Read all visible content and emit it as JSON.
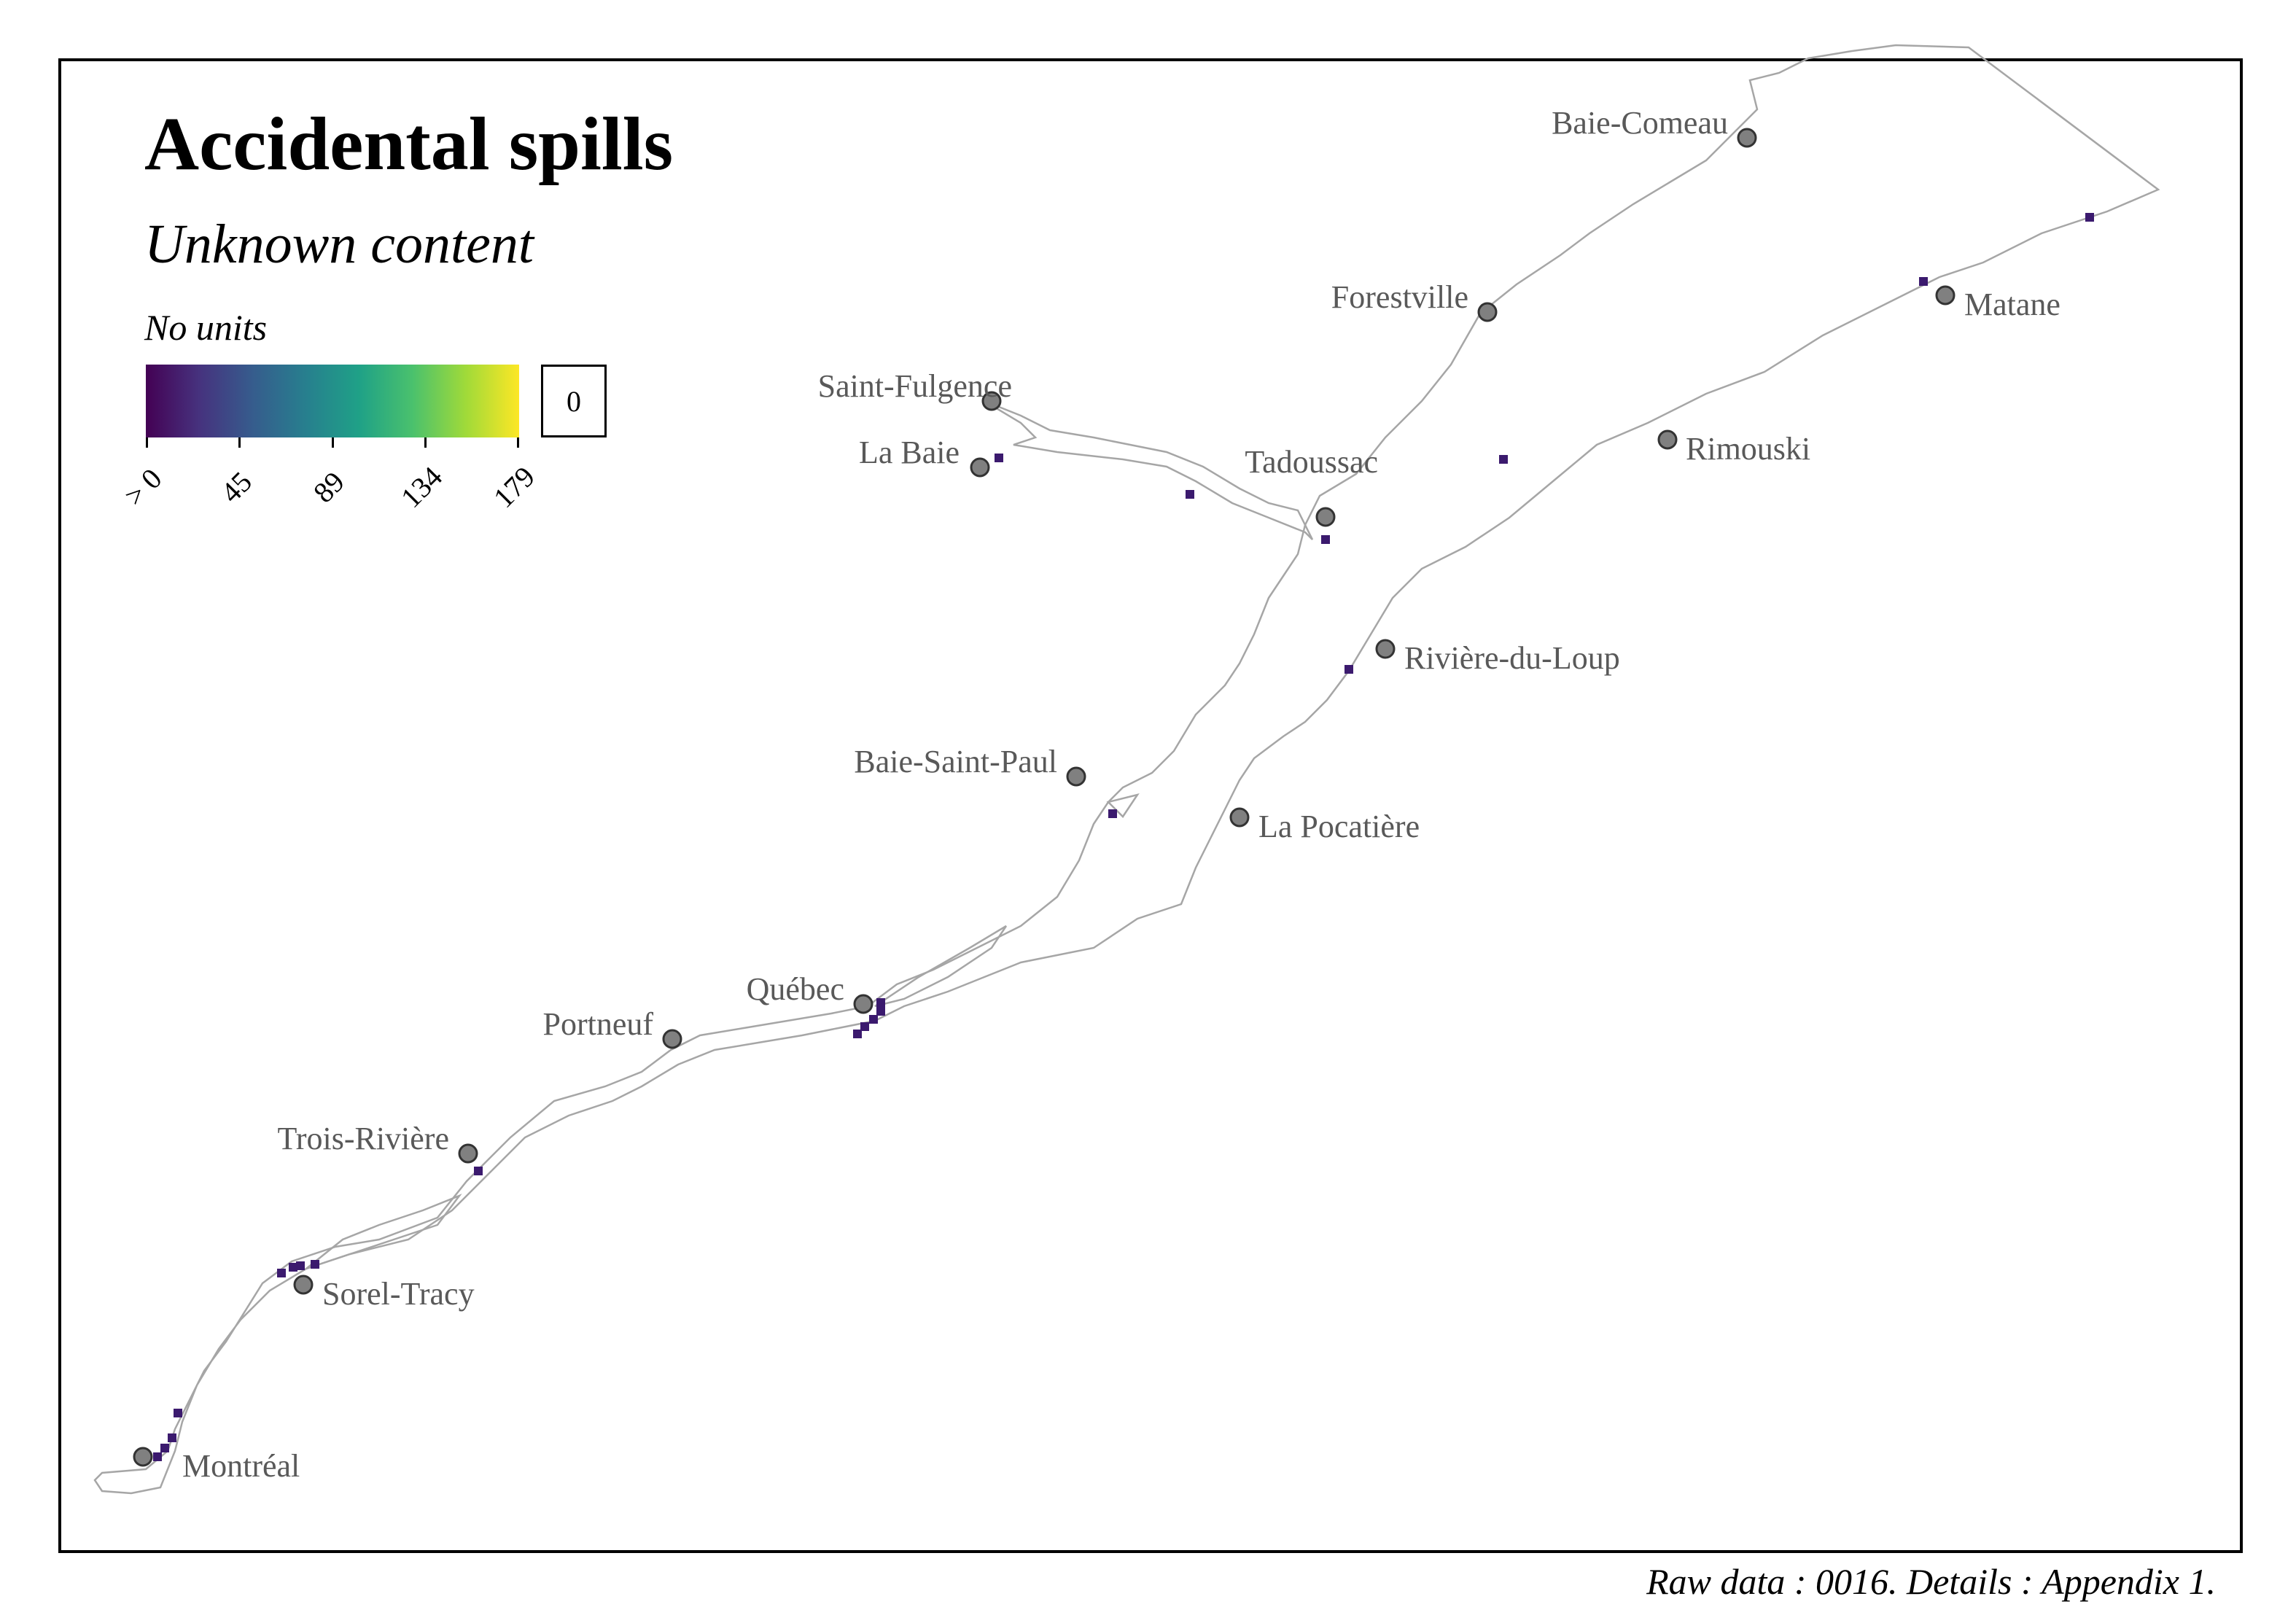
{
  "title": "Accidental spills",
  "subtitle": "Unknown content",
  "legend": {
    "units_label": "No units",
    "zero_label": "0",
    "ticks": [
      "> 0",
      "45",
      "89",
      "134",
      "179"
    ],
    "colors": [
      "#440154",
      "#46327e",
      "#365c8d",
      "#277f8e",
      "#1fa187",
      "#4ac16d",
      "#a0da39",
      "#fde725"
    ]
  },
  "cities": [
    {
      "name": "Baie-Comeau"
    },
    {
      "name": "Forestville"
    },
    {
      "name": "Matane"
    },
    {
      "name": "Saint-Fulgence"
    },
    {
      "name": "La Baie"
    },
    {
      "name": "Tadoussac"
    },
    {
      "name": "Rimouski"
    },
    {
      "name": "Rivière-du-Loup"
    },
    {
      "name": "Baie-Saint-Paul"
    },
    {
      "name": "La Pocatière"
    },
    {
      "name": "Québec"
    },
    {
      "name": "Portneuf"
    },
    {
      "name": "Trois-Rivière"
    },
    {
      "name": "Sorel-Tracy"
    },
    {
      "name": "Montréal"
    }
  ],
  "caption": "Raw data : 0016. Details : Appendix 1.",
  "colors": {
    "shoreline": "#a6a6a6",
    "city_fill": "#808080",
    "city_label": "#595959",
    "spill_cell": "#3b1a6e"
  }
}
